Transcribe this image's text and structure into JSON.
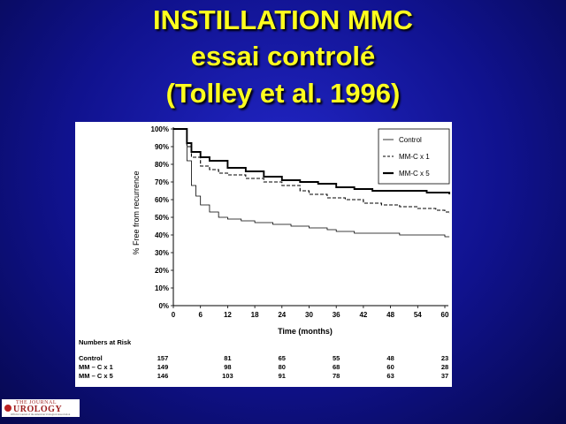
{
  "slide": {
    "title_lines": [
      "INSTILLATION MMC",
      "essai controlé",
      "(Tolley et al. 1996)"
    ],
    "bg_color": "#14169a",
    "title_color": "#ffff1e"
  },
  "logo": {
    "line1": "THE JOURNAL",
    "line2": "UROLOGY",
    "line3": "Official Journal of the American Urological Association"
  },
  "chart_data": {
    "type": "line",
    "xlabel": "Time (months)",
    "ylabel": "% Free from recurrence",
    "xlim": [
      0,
      60
    ],
    "ylim": [
      0,
      100
    ],
    "x_ticks": [
      0,
      6,
      12,
      18,
      24,
      30,
      36,
      42,
      48,
      54,
      60
    ],
    "y_ticks": [
      "0%",
      "10%",
      "20%",
      "30%",
      "40%",
      "50%",
      "60%",
      "70%",
      "80%",
      "90%",
      "100%"
    ],
    "grid": false,
    "legend_position": "top-right",
    "series": [
      {
        "name": "Control",
        "style": "thin-solid",
        "points": [
          [
            0,
            100
          ],
          [
            2,
            100
          ],
          [
            3,
            82
          ],
          [
            4,
            68
          ],
          [
            5,
            62
          ],
          [
            6,
            57
          ],
          [
            8,
            53
          ],
          [
            10,
            50
          ],
          [
            12,
            49
          ],
          [
            15,
            48
          ],
          [
            18,
            47
          ],
          [
            22,
            46
          ],
          [
            26,
            45
          ],
          [
            30,
            44
          ],
          [
            34,
            43
          ],
          [
            36,
            42
          ],
          [
            40,
            41
          ],
          [
            46,
            41
          ],
          [
            50,
            40
          ],
          [
            56,
            40
          ],
          [
            60,
            39
          ],
          [
            61,
            39
          ]
        ]
      },
      {
        "name": "MM-C x 1",
        "style": "dashed",
        "points": [
          [
            0,
            100
          ],
          [
            2,
            100
          ],
          [
            3,
            90
          ],
          [
            4,
            84
          ],
          [
            6,
            79
          ],
          [
            8,
            77
          ],
          [
            10,
            75
          ],
          [
            12,
            74
          ],
          [
            16,
            72
          ],
          [
            20,
            70
          ],
          [
            24,
            68
          ],
          [
            28,
            65
          ],
          [
            30,
            63
          ],
          [
            34,
            61
          ],
          [
            38,
            60
          ],
          [
            42,
            58
          ],
          [
            46,
            57
          ],
          [
            50,
            56
          ],
          [
            54,
            55
          ],
          [
            58,
            54
          ],
          [
            60,
            53
          ],
          [
            61,
            52
          ]
        ]
      },
      {
        "name": "MM-C x 5",
        "style": "thick-solid",
        "points": [
          [
            0,
            100
          ],
          [
            2,
            100
          ],
          [
            3,
            92
          ],
          [
            4,
            87
          ],
          [
            6,
            84
          ],
          [
            8,
            82
          ],
          [
            12,
            78
          ],
          [
            16,
            76
          ],
          [
            20,
            73
          ],
          [
            24,
            71
          ],
          [
            28,
            70
          ],
          [
            32,
            69
          ],
          [
            36,
            67
          ],
          [
            40,
            66
          ],
          [
            44,
            65
          ],
          [
            50,
            65
          ],
          [
            56,
            64
          ],
          [
            60,
            64
          ],
          [
            61,
            63
          ]
        ]
      }
    ],
    "risk_table": {
      "title": "Numbers at Risk",
      "columns": [
        0,
        12,
        24,
        36,
        48,
        60
      ],
      "rows": [
        {
          "label": "Control",
          "values": [
            157,
            81,
            65,
            55,
            48,
            23
          ]
        },
        {
          "label": "MM – C x 1",
          "values": [
            149,
            98,
            80,
            68,
            60,
            28
          ]
        },
        {
          "label": "MM – C x 5",
          "values": [
            146,
            103,
            91,
            78,
            63,
            37
          ]
        }
      ]
    }
  }
}
